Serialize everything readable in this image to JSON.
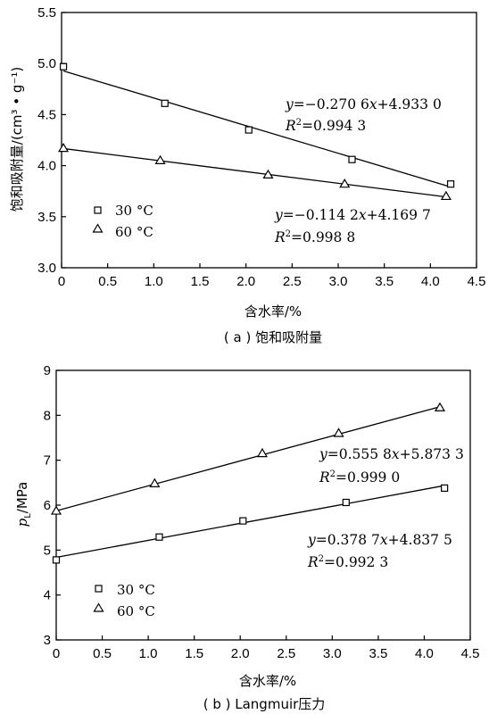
{
  "chart_data": [
    {
      "id": "a",
      "type": "scatter",
      "caption": "( a ) 饱和吸附量",
      "xlabel": "含水率/%",
      "ylabel": "饱和吸附量/(cm³ • g⁻¹)",
      "xlim": [
        0,
        4.5
      ],
      "ylim": [
        3.0,
        5.5
      ],
      "xticks": [
        "0",
        "0.5",
        "1.0",
        "1.5",
        "2.0",
        "2.5",
        "3.0",
        "3.5",
        "4.0",
        "4.5"
      ],
      "yticks": [
        "3.0",
        "3.5",
        "4.0",
        "4.5",
        "5.0",
        "5.5"
      ],
      "grid": false,
      "legend_position": "lower-left",
      "series": [
        {
          "name": "30 °C",
          "marker": "square",
          "x": [
            0.02,
            1.12,
            2.03,
            3.15,
            4.22
          ],
          "y": [
            4.97,
            4.61,
            4.35,
            4.06,
            3.82
          ],
          "fit": {
            "slope": -0.2706,
            "intercept": 4.933
          },
          "equation": {
            "y_prefix": "y",
            "eq_body": "=−0.270 6",
            "x_var": "x",
            "eq_tail": "+4.933 0",
            "r_prefix": "R",
            "r_sup": "2",
            "r_value": "=0.994 3"
          }
        },
        {
          "name": "60 °C",
          "marker": "triangle",
          "x": [
            0.02,
            1.07,
            2.24,
            3.07,
            4.17
          ],
          "y": [
            4.17,
            4.05,
            3.91,
            3.82,
            3.7
          ],
          "fit": {
            "slope": -0.1142,
            "intercept": 4.1697
          },
          "equation": {
            "y_prefix": "y",
            "eq_body": "=−0.114 2",
            "x_var": "x",
            "eq_tail": "+4.169 7",
            "r_prefix": "R",
            "r_sup": "2",
            "r_value": "=0.998 8"
          }
        }
      ]
    },
    {
      "id": "b",
      "type": "scatter",
      "caption": "( b ) Langmuir压力",
      "xlabel": "含水率/%",
      "ylabel": "pL/MPa",
      "ylabel_parts": {
        "p": "p",
        "sub": "L",
        "unit": "/MPa"
      },
      "xlim": [
        0,
        4.5
      ],
      "ylim": [
        3,
        9
      ],
      "xticks": [
        "0",
        "0.5",
        "1.0",
        "1.5",
        "2.0",
        "2.5",
        "3.0",
        "3.5",
        "4.0",
        "4.5"
      ],
      "yticks": [
        "3",
        "4",
        "5",
        "6",
        "7",
        "8",
        "9"
      ],
      "grid": false,
      "legend_position": "lower-left",
      "series": [
        {
          "name": "30 °C",
          "marker": "square",
          "x": [
            0.0,
            1.12,
            2.03,
            3.15,
            4.22
          ],
          "y": [
            4.78,
            5.29,
            5.65,
            6.06,
            6.38
          ],
          "fit": {
            "slope": 0.3787,
            "intercept": 4.8375
          },
          "equation": {
            "y_prefix": "y",
            "eq_body": "=0.378 7",
            "x_var": "x",
            "eq_tail": "+4.837 5",
            "r_prefix": "R",
            "r_sup": "2",
            "r_value": "=0.992 3"
          }
        },
        {
          "name": "60 °C",
          "marker": "triangle",
          "x": [
            0.0,
            1.07,
            2.24,
            3.07,
            4.17
          ],
          "y": [
            5.87,
            6.48,
            7.15,
            7.6,
            8.17
          ],
          "fit": {
            "slope": 0.5558,
            "intercept": 5.8733
          },
          "equation": {
            "y_prefix": "y",
            "eq_body": "=0.555 8",
            "x_var": "x",
            "eq_tail": "+5.873 3",
            "r_prefix": "R",
            "r_sup": "2",
            "r_value": "=0.999 0"
          }
        }
      ]
    }
  ]
}
